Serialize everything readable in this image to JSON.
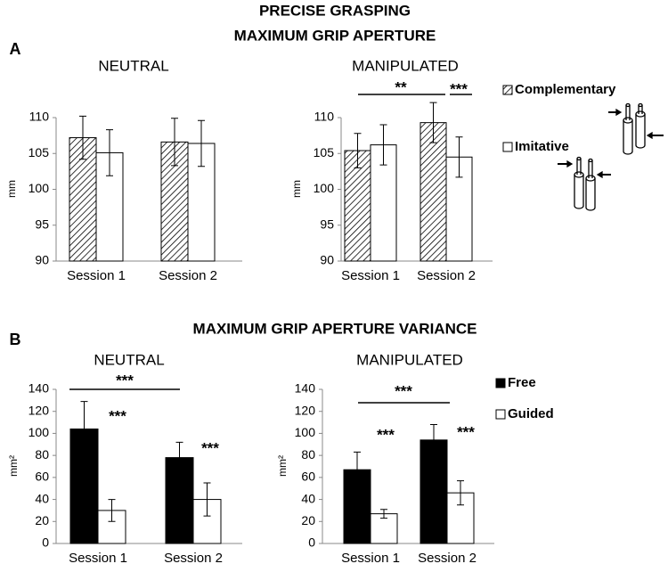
{
  "figure": {
    "title_lines": [
      "PRECISE GRASPING",
      "MAXIMUM GRIP APERTURE"
    ],
    "panels": [
      "A",
      "B"
    ],
    "section_title": "MAXIMUM GRIP APERTURE VARIANCE"
  },
  "chart_data": [
    {
      "type": "bar",
      "title": "NEUTRAL",
      "ylabel": "mm",
      "categories": [
        "Session 1",
        "Session 2"
      ],
      "series": [
        {
          "color": "#ffffff",
          "pattern": "hatch",
          "values": [
            107.2,
            106.6
          ],
          "errors": [
            3.0,
            3.3
          ]
        },
        {
          "color": "#ffffff",
          "values": [
            105.1,
            106.4
          ],
          "errors": [
            3.2,
            3.2
          ]
        }
      ],
      "ylim": [
        90,
        110
      ],
      "yticks": [
        90,
        95,
        100,
        105,
        110
      ],
      "annotations": []
    },
    {
      "type": "bar",
      "title": "MANIPULATED",
      "ylabel": "mm",
      "categories": [
        "Session 1",
        "Session 2"
      ],
      "series": [
        {
          "name": "Complementary",
          "color": "#ffffff",
          "pattern": "hatch",
          "values": [
            105.4,
            109.3
          ],
          "errors": [
            2.4,
            2.8
          ]
        },
        {
          "name": "Imitative",
          "color": "#ffffff",
          "values": [
            106.2,
            104.5
          ],
          "errors": [
            2.8,
            2.8
          ]
        }
      ],
      "ylim": [
        90,
        110
      ],
      "yticks": [
        90,
        95,
        100,
        105,
        110
      ],
      "annotations": [
        "**",
        "***"
      ]
    },
    {
      "type": "bar",
      "title": "NEUTRAL",
      "ylabel": "mm²",
      "categories": [
        "Session 1",
        "Session 2"
      ],
      "series": [
        {
          "color": "#000000",
          "values": [
            104,
            78
          ],
          "errors": [
            25,
            14
          ]
        },
        {
          "color": "#ffffff",
          "values": [
            30,
            40
          ],
          "errors": [
            10,
            15
          ]
        }
      ],
      "ylim": [
        0,
        140
      ],
      "yticks": [
        0,
        20,
        40,
        60,
        80,
        100,
        120,
        140
      ],
      "annotations": [
        "***",
        "***",
        "***"
      ]
    },
    {
      "type": "bar",
      "title": "MANIPULATED",
      "ylabel": "mm²",
      "categories": [
        "Session 1",
        "Session 2"
      ],
      "series": [
        {
          "name": "Free",
          "color": "#000000",
          "values": [
            67,
            94
          ],
          "errors": [
            16,
            14
          ]
        },
        {
          "name": "Guided",
          "color": "#ffffff",
          "values": [
            27,
            46
          ],
          "errors": [
            4,
            11
          ]
        }
      ],
      "ylim": [
        0,
        140
      ],
      "yticks": [
        0,
        20,
        40,
        60,
        80,
        100,
        120,
        140
      ],
      "annotations": [
        "***",
        "***",
        "***"
      ]
    }
  ]
}
